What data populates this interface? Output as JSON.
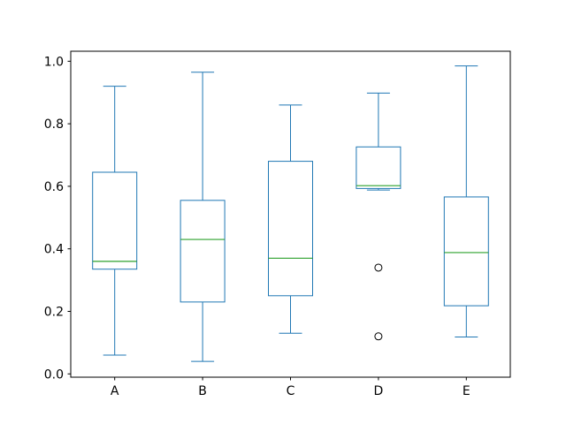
{
  "chart_data": {
    "type": "boxplot",
    "title": "",
    "xlabel": "",
    "ylabel": "",
    "grid": false,
    "legend": null,
    "categories": [
      "A",
      "B",
      "C",
      "D",
      "E"
    ],
    "boxes": [
      {
        "category": "A",
        "position": 1,
        "whisker_low": 0.06,
        "q1": 0.335,
        "median": 0.36,
        "q3": 0.645,
        "whisker_high": 0.92,
        "fliers": []
      },
      {
        "category": "B",
        "position": 2,
        "whisker_low": 0.04,
        "q1": 0.23,
        "median": 0.43,
        "q3": 0.555,
        "whisker_high": 0.965,
        "fliers": []
      },
      {
        "category": "C",
        "position": 3,
        "whisker_low": 0.13,
        "q1": 0.25,
        "median": 0.37,
        "q3": 0.68,
        "whisker_high": 0.86,
        "fliers": []
      },
      {
        "category": "D",
        "position": 4,
        "whisker_low": 0.588,
        "q1": 0.593,
        "median": 0.602,
        "q3": 0.726,
        "whisker_high": 0.898,
        "fliers": [
          0.34,
          0.12
        ]
      },
      {
        "category": "E",
        "position": 5,
        "whisker_low": 0.118,
        "q1": 0.218,
        "median": 0.388,
        "q3": 0.566,
        "whisker_high": 0.985,
        "fliers": []
      }
    ],
    "yticks": {
      "values": [
        0.0,
        0.2,
        0.4,
        0.6,
        0.8,
        1.0
      ],
      "labels": [
        "0.0",
        "0.2",
        "0.4",
        "0.6",
        "0.8",
        "1.0"
      ]
    },
    "xticks": {
      "positions": [
        1,
        2,
        3,
        4,
        5
      ],
      "labels": [
        "A",
        "B",
        "C",
        "D",
        "E"
      ]
    },
    "ylim": [
      -0.0105,
      1.032
    ],
    "xlim": [
      0.5,
      5.5
    ],
    "colors": {
      "box": "#1f77b4",
      "whisker": "#1f77b4",
      "cap": "#1f77b4",
      "median": "#2ca02c",
      "flier_edge": "#000000",
      "axis": "#000000",
      "background": "#ffffff"
    }
  }
}
